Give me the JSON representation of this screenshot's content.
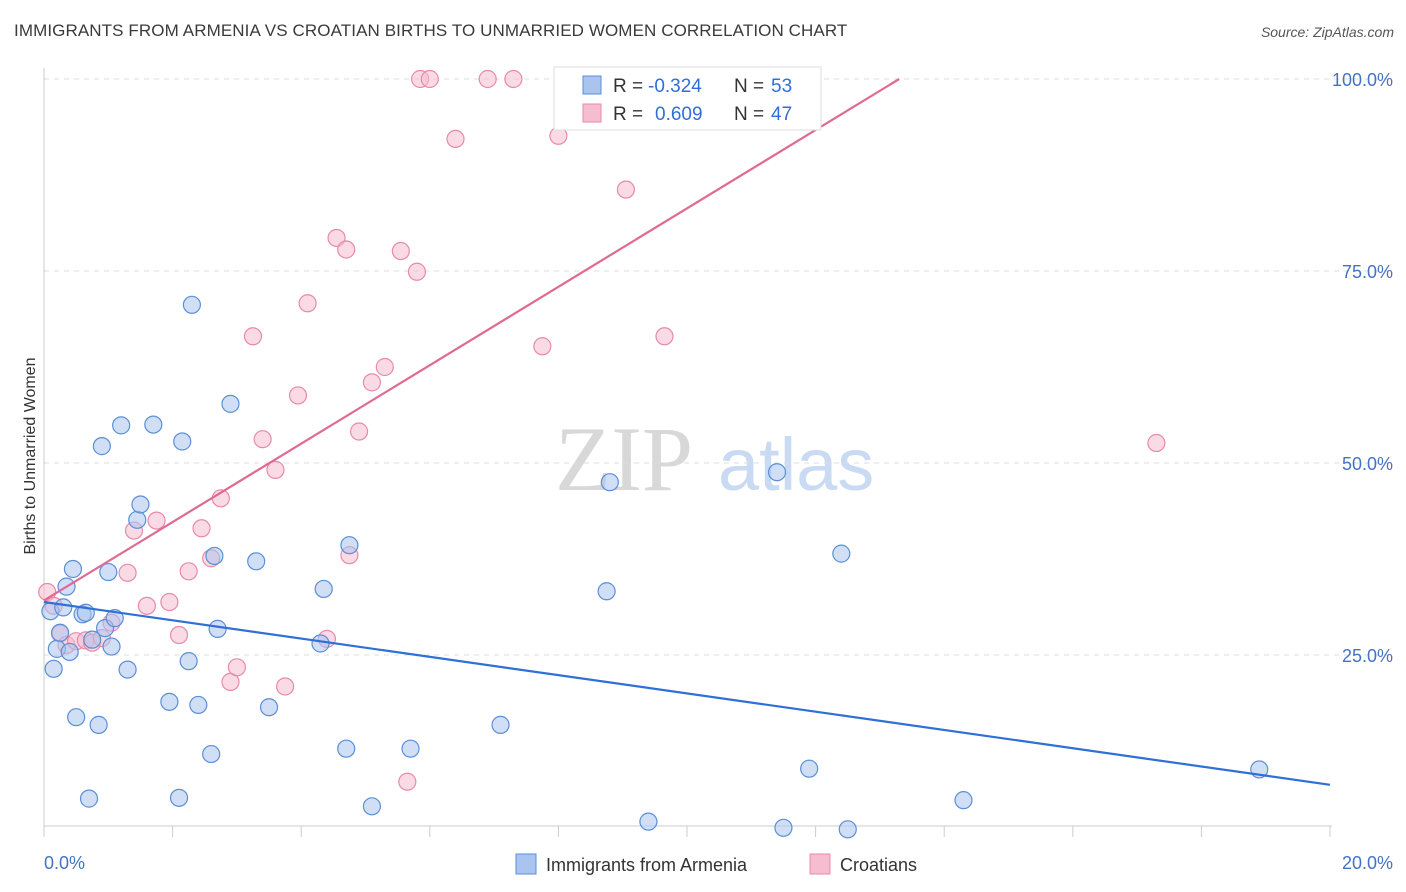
{
  "title": "IMMIGRANTS FROM ARMENIA VS CROATIAN BIRTHS TO UNMARRIED WOMEN CORRELATION CHART",
  "source": "Source: ZipAtlas.com",
  "watermark": {
    "zip": "ZIP",
    "atlas": "atlas"
  },
  "colors": {
    "armenia_fill": "#a9c4ee",
    "armenia_stroke": "#5b8fd6",
    "armenia_line": "#2f6fd6",
    "croatia_fill": "#f6bcd0",
    "croatia_stroke": "#e88aa9",
    "croatia_line": "#e06a93",
    "axis_text": "#4472c4",
    "grid": "#dddddd"
  },
  "legend": {
    "armenia": {
      "r_label": "R =",
      "r_value": "-0.324",
      "n_label": "N =",
      "n_value": "53"
    },
    "croatia": {
      "r_label": "R =",
      "r_value": "0.609",
      "n_label": "N =",
      "n_value": "47"
    }
  },
  "chart_data": {
    "type": "scatter",
    "title": "IMMIGRANTS FROM ARMENIA VS CROATIAN BIRTHS TO UNMARRIED WOMEN CORRELATION CHART",
    "xlabel": "",
    "ylabel": "Births to Unmarried Women",
    "xlim": [
      0,
      20
    ],
    "ylim": [
      0,
      105
    ],
    "x_tick_labels": [
      "0.0%",
      "20.0%"
    ],
    "y_ticks": [
      25,
      50,
      75,
      100
    ],
    "y_tick_labels": [
      "25.0%",
      "50.0%",
      "75.0%",
      "100.0%"
    ],
    "grid": true,
    "legend_position": "top-center",
    "series": [
      {
        "name": "Immigrants from Armenia",
        "trendline": {
          "x": [
            0,
            20
          ],
          "y": [
            31.9,
            8.1
          ]
        },
        "points": [
          [
            0.1,
            30.7
          ],
          [
            0.15,
            23.2
          ],
          [
            0.2,
            25.8
          ],
          [
            0.25,
            27.9
          ],
          [
            0.3,
            31.2
          ],
          [
            0.35,
            33.9
          ],
          [
            0.4,
            25.4
          ],
          [
            0.45,
            36.2
          ],
          [
            0.5,
            16.9
          ],
          [
            0.6,
            30.3
          ],
          [
            0.65,
            30.5
          ],
          [
            0.7,
            6.3
          ],
          [
            0.75,
            27.0
          ],
          [
            0.85,
            15.9
          ],
          [
            0.9,
            52.2
          ],
          [
            0.95,
            28.5
          ],
          [
            1.0,
            35.8
          ],
          [
            1.05,
            26.1
          ],
          [
            1.1,
            29.8
          ],
          [
            1.2,
            54.9
          ],
          [
            1.3,
            23.1
          ],
          [
            1.45,
            42.6
          ],
          [
            1.5,
            44.6
          ],
          [
            1.7,
            55.0
          ],
          [
            1.95,
            18.9
          ],
          [
            2.1,
            6.4
          ],
          [
            2.15,
            52.8
          ],
          [
            2.25,
            24.2
          ],
          [
            2.3,
            70.6
          ],
          [
            2.4,
            18.5
          ],
          [
            2.6,
            12.1
          ],
          [
            2.65,
            37.9
          ],
          [
            2.7,
            28.4
          ],
          [
            2.9,
            57.7
          ],
          [
            3.3,
            37.2
          ],
          [
            3.5,
            18.2
          ],
          [
            4.3,
            26.5
          ],
          [
            4.35,
            33.6
          ],
          [
            4.7,
            12.8
          ],
          [
            4.75,
            39.3
          ],
          [
            5.1,
            5.3
          ],
          [
            5.7,
            12.8
          ],
          [
            7.1,
            15.9
          ],
          [
            8.8,
            47.5
          ],
          [
            8.75,
            33.3
          ],
          [
            9.4,
            3.3
          ],
          [
            11.4,
            48.8
          ],
          [
            11.5,
            2.5
          ],
          [
            11.9,
            10.2
          ],
          [
            12.4,
            38.2
          ],
          [
            12.5,
            2.3
          ],
          [
            14.3,
            6.1
          ],
          [
            18.9,
            10.1
          ]
        ]
      },
      {
        "name": "Croatians",
        "trendline": {
          "x": [
            0,
            13.3
          ],
          "y": [
            32.1,
            100.0
          ]
        },
        "points": [
          [
            0.05,
            33.2
          ],
          [
            0.15,
            31.4
          ],
          [
            0.25,
            27.8
          ],
          [
            0.35,
            26.3
          ],
          [
            0.5,
            26.8
          ],
          [
            0.65,
            26.9
          ],
          [
            0.75,
            26.6
          ],
          [
            0.9,
            27.2
          ],
          [
            1.05,
            29.2
          ],
          [
            1.3,
            35.7
          ],
          [
            1.6,
            31.4
          ],
          [
            1.4,
            41.2
          ],
          [
            1.75,
            42.5
          ],
          [
            1.95,
            31.9
          ],
          [
            2.1,
            27.6
          ],
          [
            2.25,
            35.9
          ],
          [
            2.45,
            41.5
          ],
          [
            2.6,
            37.6
          ],
          [
            2.75,
            45.4
          ],
          [
            2.9,
            21.5
          ],
          [
            3.0,
            23.4
          ],
          [
            3.25,
            66.5
          ],
          [
            3.4,
            53.1
          ],
          [
            3.6,
            49.1
          ],
          [
            3.75,
            20.9
          ],
          [
            3.95,
            58.8
          ],
          [
            4.1,
            70.8
          ],
          [
            4.4,
            27.1
          ],
          [
            4.55,
            79.3
          ],
          [
            4.7,
            77.8
          ],
          [
            4.75,
            38.0
          ],
          [
            4.9,
            54.1
          ],
          [
            5.1,
            60.5
          ],
          [
            5.3,
            62.5
          ],
          [
            5.55,
            77.6
          ],
          [
            5.65,
            8.5
          ],
          [
            5.8,
            74.9
          ],
          [
            5.85,
            100
          ],
          [
            6.0,
            100
          ],
          [
            6.4,
            92.2
          ],
          [
            6.9,
            100
          ],
          [
            7.3,
            100
          ],
          [
            7.75,
            65.2
          ],
          [
            8.0,
            92.6
          ],
          [
            9.05,
            85.6
          ],
          [
            9.65,
            66.5
          ],
          [
            17.3,
            52.6
          ]
        ]
      }
    ]
  },
  "bottom_legend": {
    "armenia": "Immigrants from Armenia",
    "croatia": "Croatians"
  }
}
